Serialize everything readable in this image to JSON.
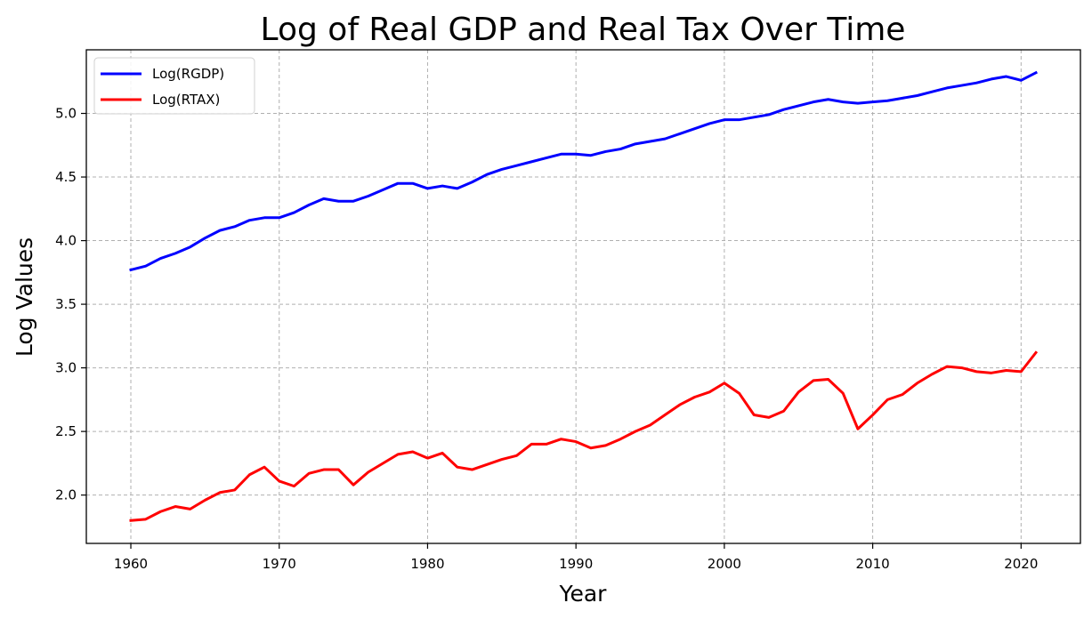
{
  "chart_data": {
    "type": "line",
    "title": "Log of Real GDP and Real Tax Over Time",
    "xlabel": "Year",
    "ylabel": "Log Values",
    "xlim": [
      1957,
      2024
    ],
    "ylim": [
      1.62,
      5.5
    ],
    "xticks": [
      1960,
      1970,
      1980,
      1990,
      2000,
      2010,
      2020
    ],
    "yticks": [
      2.0,
      2.5,
      3.0,
      3.5,
      4.0,
      4.5,
      5.0
    ],
    "ytick_labels": [
      "2.0",
      "2.5",
      "3.0",
      "3.5",
      "4.0",
      "4.5",
      "5.0"
    ],
    "grid": true,
    "legend_position": "top-left",
    "x": [
      1960,
      1961,
      1962,
      1963,
      1964,
      1965,
      1966,
      1967,
      1968,
      1969,
      1970,
      1971,
      1972,
      1973,
      1974,
      1975,
      1976,
      1977,
      1978,
      1979,
      1980,
      1981,
      1982,
      1983,
      1984,
      1985,
      1986,
      1987,
      1988,
      1989,
      1990,
      1991,
      1992,
      1993,
      1994,
      1995,
      1996,
      1997,
      1998,
      1999,
      2000,
      2001,
      2002,
      2003,
      2004,
      2005,
      2006,
      2007,
      2008,
      2009,
      2010,
      2011,
      2012,
      2013,
      2014,
      2015,
      2016,
      2017,
      2018,
      2019,
      2020,
      2021
    ],
    "series": [
      {
        "name": "Log(RGDP)",
        "color": "#0000ff",
        "values": [
          3.77,
          3.8,
          3.86,
          3.9,
          3.95,
          4.02,
          4.08,
          4.11,
          4.16,
          4.18,
          4.18,
          4.22,
          4.28,
          4.33,
          4.31,
          4.31,
          4.35,
          4.4,
          4.45,
          4.45,
          4.41,
          4.43,
          4.41,
          4.46,
          4.52,
          4.56,
          4.59,
          4.62,
          4.65,
          4.68,
          4.68,
          4.67,
          4.7,
          4.72,
          4.76,
          4.78,
          4.8,
          4.84,
          4.88,
          4.92,
          4.95,
          4.95,
          4.97,
          4.99,
          5.03,
          5.06,
          5.09,
          5.11,
          5.09,
          5.08,
          5.09,
          5.1,
          5.12,
          5.14,
          5.17,
          5.2,
          5.22,
          5.24,
          5.27,
          5.29,
          5.26,
          5.32
        ]
      },
      {
        "name": "Log(RTAX)",
        "color": "#ff0000",
        "values": [
          1.8,
          1.81,
          1.87,
          1.91,
          1.89,
          1.96,
          2.02,
          2.04,
          2.16,
          2.22,
          2.11,
          2.07,
          2.17,
          2.2,
          2.2,
          2.08,
          2.18,
          2.25,
          2.32,
          2.34,
          2.29,
          2.33,
          2.22,
          2.2,
          2.24,
          2.28,
          2.31,
          2.4,
          2.4,
          2.44,
          2.42,
          2.37,
          2.39,
          2.44,
          2.5,
          2.55,
          2.63,
          2.71,
          2.77,
          2.81,
          2.88,
          2.8,
          2.63,
          2.61,
          2.66,
          2.81,
          2.9,
          2.91,
          2.8,
          2.52,
          2.63,
          2.75,
          2.79,
          2.88,
          2.95,
          3.01,
          3.0,
          2.97,
          2.96,
          2.98,
          2.97,
          3.12
        ]
      }
    ]
  }
}
